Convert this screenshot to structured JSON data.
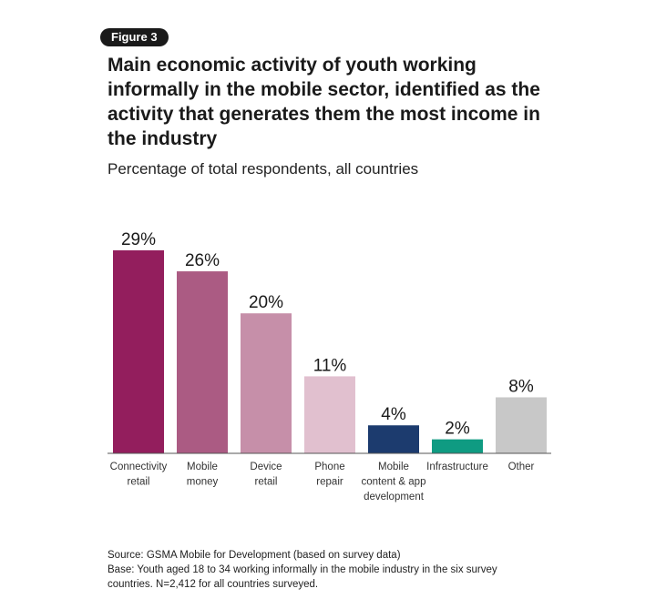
{
  "figure_label": "Figure 3",
  "title": "Main economic activity of youth working informally in the mobile sector, identified as the activity that generates them the most income in the industry",
  "subtitle": "Percentage of total respondents, all countries",
  "chart_data": {
    "type": "bar",
    "categories": [
      [
        "Connectivity",
        "retail"
      ],
      [
        "Mobile",
        "money"
      ],
      [
        "Device",
        "retail"
      ],
      [
        "Phone",
        "repair"
      ],
      [
        "Mobile",
        "content & app",
        "development"
      ],
      [
        "Infrastructure"
      ],
      [
        "Other"
      ]
    ],
    "values": [
      29,
      26,
      20,
      11,
      4,
      2,
      8
    ],
    "value_labels": [
      "29%",
      "26%",
      "20%",
      "11%",
      "4%",
      "2%",
      "8%"
    ],
    "colors": [
      "#931e5d",
      "#ab5b83",
      "#c68fa9",
      "#e1c0cf",
      "#1c3b6e",
      "#0f9b82",
      "#c8c8c8"
    ],
    "ylim": [
      0,
      29
    ]
  },
  "footer": {
    "source": "Source: GSMA Mobile for Development (based on survey data)",
    "base": "Base: Youth aged 18 to 34 working informally in the mobile industry in the six survey countries. N=2,412 for all countries surveyed."
  }
}
